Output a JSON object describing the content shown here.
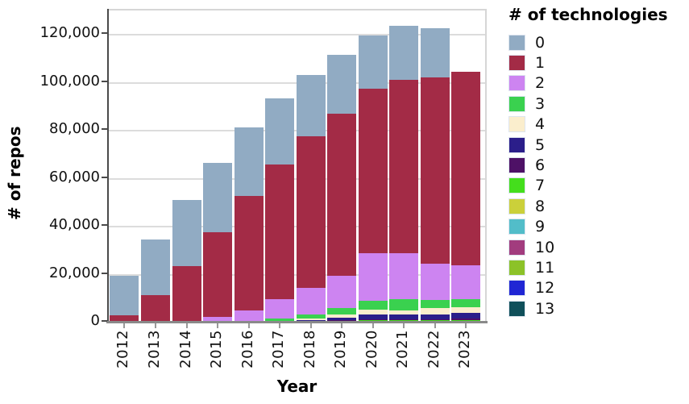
{
  "chart_data": {
    "type": "bar",
    "subtype": "stacked-vertical",
    "title": "",
    "xlabel": "Year",
    "ylabel": "# of repos",
    "legend_title": "# of technologies",
    "legend_position": "right",
    "grid": "horizontal",
    "ylim": [
      0,
      130100
    ],
    "yticks": [
      0,
      20000,
      40000,
      60000,
      80000,
      100000,
      120000
    ],
    "categories": [
      "2012",
      "2013",
      "2014",
      "2015",
      "2016",
      "2017",
      "2018",
      "2019",
      "2020",
      "2021",
      "2022",
      "2023"
    ],
    "series": [
      {
        "name": "0",
        "color": "#91abc3",
        "values": [
          16500,
          23400,
          27400,
          28900,
          28600,
          27700,
          25500,
          24500,
          22000,
          22400,
          20400,
          0
        ]
      },
      {
        "name": "1",
        "color": "#a32b46",
        "values": [
          2650,
          10850,
          22800,
          35500,
          48000,
          56200,
          63400,
          67600,
          68700,
          72300,
          77600,
          80600
        ]
      },
      {
        "name": "2",
        "color": "#cd84f1",
        "values": [
          190,
          330,
          650,
          2000,
          4230,
          7800,
          11000,
          13400,
          19700,
          19000,
          15150,
          14000
        ]
      },
      {
        "name": "3",
        "color": "#3ad14f",
        "values": [
          40,
          80,
          100,
          200,
          420,
          1000,
          1700,
          2600,
          3800,
          4800,
          3590,
          3600
        ]
      },
      {
        "name": "4",
        "color": "#fbeecd",
        "values": [
          10,
          20,
          25,
          50,
          100,
          300,
          600,
          1300,
          2000,
          1700,
          2440,
          2210
        ]
      },
      {
        "name": "5",
        "color": "#2b1e8a",
        "values": [
          10,
          20,
          25,
          50,
          80,
          250,
          500,
          1150,
          1900,
          1900,
          2020,
          2250
        ]
      },
      {
        "name": "6",
        "color": "#4e1166",
        "values": [
          0,
          0,
          0,
          0,
          40,
          100,
          200,
          400,
          600,
          600,
          550,
          700
        ]
      },
      {
        "name": "7",
        "color": "#44de1c",
        "values": [
          0,
          0,
          0,
          0,
          30,
          50,
          90,
          170,
          280,
          280,
          280,
          350
        ]
      },
      {
        "name": "8",
        "color": "#cbd03a",
        "values": [
          0,
          0,
          0,
          0,
          0,
          30,
          60,
          110,
          170,
          170,
          180,
          220
        ]
      },
      {
        "name": "9",
        "color": "#52bdc9",
        "values": [
          0,
          0,
          0,
          0,
          0,
          20,
          40,
          80,
          130,
          130,
          140,
          160
        ]
      },
      {
        "name": "10",
        "color": "#a23c7e",
        "values": [
          0,
          0,
          0,
          0,
          0,
          20,
          40,
          70,
          120,
          120,
          130,
          150
        ]
      },
      {
        "name": "11",
        "color": "#8cc228",
        "values": [
          0,
          0,
          0,
          0,
          0,
          15,
          30,
          60,
          110,
          110,
          120,
          150
        ]
      },
      {
        "name": "12",
        "color": "#2026d4",
        "values": [
          0,
          0,
          0,
          0,
          0,
          10,
          20,
          30,
          50,
          50,
          50,
          60
        ]
      },
      {
        "name": "13",
        "color": "#10505a",
        "values": [
          0,
          0,
          0,
          0,
          0,
          5,
          20,
          30,
          40,
          40,
          50,
          50
        ]
      }
    ]
  }
}
